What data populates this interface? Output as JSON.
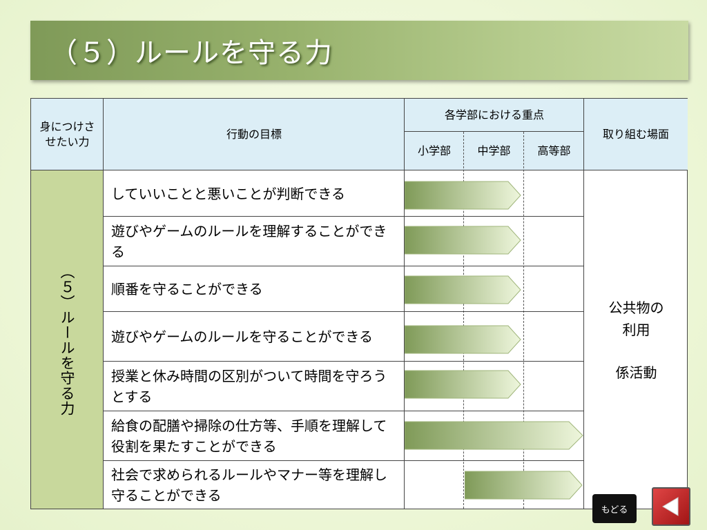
{
  "slide": {
    "title": "（５）ルールを守る力"
  },
  "table": {
    "headers": {
      "skill": "身につけさせたい力",
      "goal": "行動の目標",
      "priority": "各学部における重点",
      "elementary": "小学部",
      "junior": "中学部",
      "senior": "高等部",
      "scene": "取り組む場面"
    },
    "skill_label": "（５）ルールを守る力",
    "rows": [
      {
        "goal": "していいことと悪いことが判断できる",
        "priority_span": "小学部〜中学部"
      },
      {
        "goal": "遊びやゲームのルールを理解することができる",
        "priority_span": "小学部〜中学部"
      },
      {
        "goal": "順番を守ることができる",
        "priority_span": "小学部〜中学部"
      },
      {
        "goal": "遊びやゲームのルールを守ることができる",
        "priority_span": "小学部〜中学部"
      },
      {
        "goal": "授業と休み時間の区別がついて時間を守ろうとする",
        "priority_span": "小学部〜中学部"
      },
      {
        "goal": "給食の配膳や掃除の仕方等、手順を理解して役割を果たすことができる",
        "priority_span": "小学部〜高等部"
      },
      {
        "goal": "社会で求められるルールやマナー等を理解し守ることができる",
        "priority_span": "中学部〜高等部"
      }
    ],
    "scene": {
      "line1": "公共物の",
      "line2": "利用",
      "line3": "係活動"
    }
  },
  "nav": {
    "back_label": "もどる",
    "back_icon": "triangle-left-icon"
  },
  "colors": {
    "header_bg": "#dceef6",
    "skill_col_bg": "#c8d89c",
    "arrow_dark": "#7f9a58",
    "arrow_light": "#eef6dc",
    "back_button": "#c42020"
  }
}
